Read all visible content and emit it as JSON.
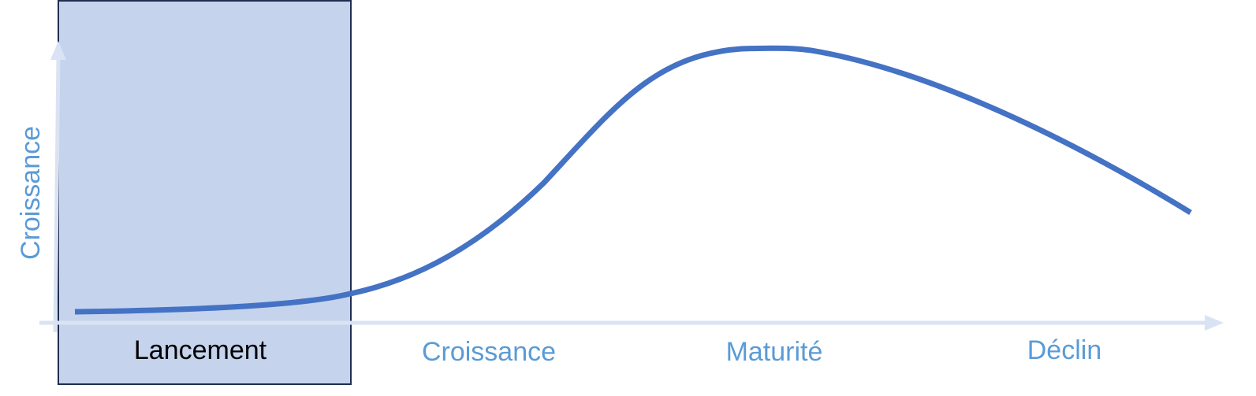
{
  "axis": {
    "y_label": "Croissance"
  },
  "stages": [
    {
      "label": "Lancement",
      "highlighted": true
    },
    {
      "label": "Croissance",
      "highlighted": false
    },
    {
      "label": "Maturité",
      "highlighted": false
    },
    {
      "label": "Déclin",
      "highlighted": false
    }
  ],
  "colors": {
    "curve": "#4472C4",
    "axis": "#DAE3F3",
    "highlight_fill": "#C5D3ED",
    "highlight_border": "#1F2D4E",
    "stage_text": "#5B9BD5",
    "highlight_text": "#000000"
  }
}
